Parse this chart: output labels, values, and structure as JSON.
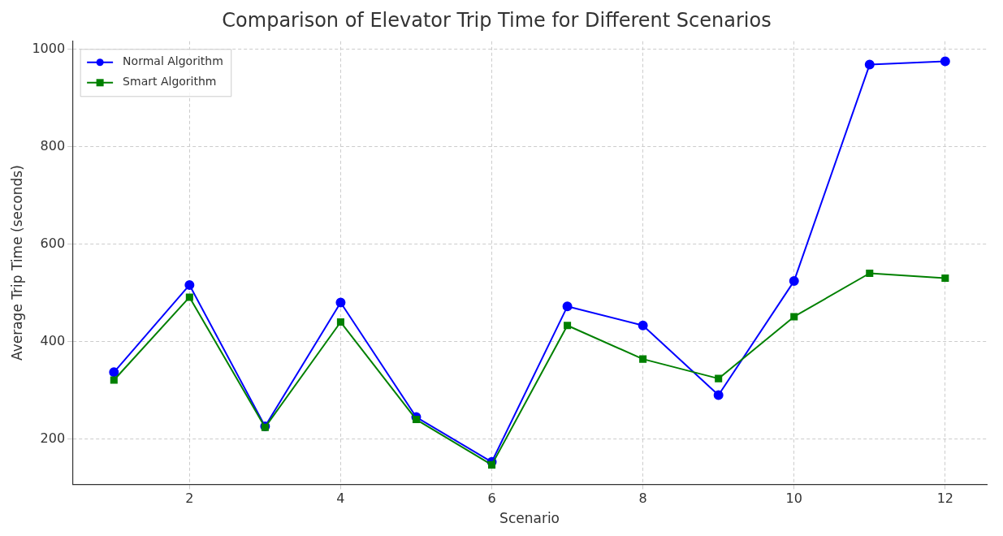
{
  "chart_data": {
    "type": "line",
    "title": "Comparison of Elevator Trip Time for Different Scenarios",
    "xlabel": "Scenario",
    "ylabel": "Average Trip Time (seconds)",
    "x": [
      1,
      2,
      3,
      4,
      5,
      6,
      7,
      8,
      9,
      10,
      11,
      12
    ],
    "series": [
      {
        "name": "Normal Algorithm",
        "color": "#0000ff",
        "marker": "circle",
        "values": [
          337,
          516,
          226,
          480,
          245,
          153,
          472,
          433,
          290,
          524,
          968,
          975
        ]
      },
      {
        "name": "Smart Algorithm",
        "color": "#008000",
        "marker": "square",
        "values": [
          321,
          491,
          224,
          440,
          240,
          147,
          433,
          364,
          324,
          451,
          540,
          530
        ]
      }
    ],
    "xlim": [
      0.45,
      12.55
    ],
    "xticks": [
      2,
      4,
      6,
      8,
      10,
      12
    ],
    "ylim": [
      107,
      1016
    ],
    "yticks": [
      200,
      400,
      600,
      800,
      1000
    ],
    "grid": true,
    "legend": "top left",
    "line_style": "solid"
  }
}
